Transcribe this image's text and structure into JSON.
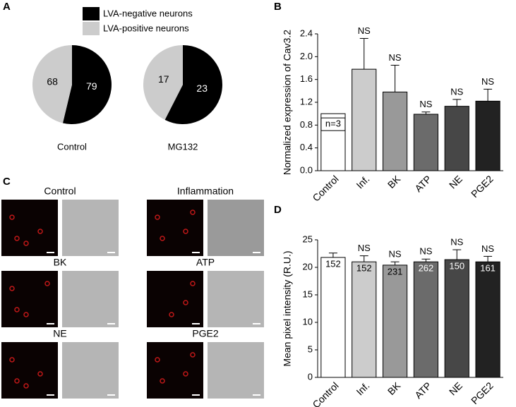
{
  "chart_data": [
    {
      "type": "pie",
      "panel": "A",
      "categories": [
        "Control",
        "MG132"
      ],
      "series": [
        {
          "name": "LVA-negative neurons",
          "color": "#000000",
          "values": [
            79,
            23
          ]
        },
        {
          "name": "LVA-positive neurons",
          "color": "#cccccc",
          "values": [
            68,
            17
          ]
        }
      ]
    },
    {
      "type": "bar",
      "panel": "B",
      "y_label": "Normalized expression of Cav3.2",
      "categories": [
        "Control",
        "Inf.",
        "BK",
        "ATP",
        "NE",
        "PGE2"
      ],
      "values": [
        1.0,
        1.78,
        1.38,
        0.99,
        1.13,
        1.22
      ],
      "errors": [
        null,
        0.54,
        0.47,
        0.04,
        0.12,
        0.21
      ],
      "colors": [
        "#ffffff",
        "#cccccc",
        "#999999",
        "#6b6b6b",
        "#474747",
        "#222222"
      ],
      "annotations": [
        "n=3",
        "NS",
        "NS",
        "NS",
        "NS",
        "NS"
      ],
      "ylim": [
        0,
        2.4
      ],
      "yticks": [
        {
          "value": 0,
          "label": "0.0"
        },
        0.4,
        0.8,
        1.2,
        1.6,
        {
          "value": 2,
          "label": "2.0"
        },
        2.4
      ]
    },
    {
      "type": "bar",
      "panel": "D",
      "y_label": "Mean pixel intensity (R.U.)",
      "categories": [
        "Control",
        "Inf.",
        "BK",
        "ATP",
        "NE",
        "PGE2"
      ],
      "values": [
        21.8,
        21.0,
        20.4,
        21.0,
        21.4,
        21.0
      ],
      "errors": [
        0.8,
        1.1,
        0.6,
        0.5,
        1.8,
        1.0
      ],
      "colors": [
        "#ffffff",
        "#cccccc",
        "#999999",
        "#6b6b6b",
        "#474747",
        "#222222"
      ],
      "annotations": [
        null,
        "NS",
        "NS",
        "NS",
        "NS",
        "NS"
      ],
      "counts": [
        152,
        152,
        231,
        262,
        150,
        161
      ],
      "ylim": [
        0,
        25
      ],
      "yticks": [
        0,
        5,
        10,
        15,
        20,
        25
      ]
    }
  ],
  "images": {
    "panel": "C",
    "groups": [
      "Control",
      "Inflammation",
      "BK",
      "ATP",
      "NE",
      "PGE2"
    ]
  }
}
